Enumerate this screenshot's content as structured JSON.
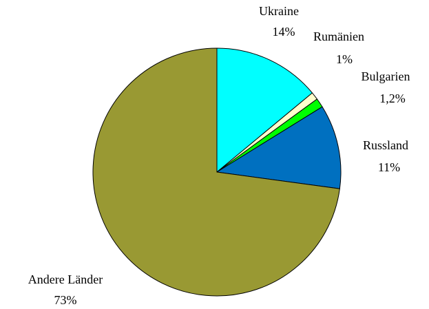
{
  "chart_data": {
    "type": "pie",
    "categories": [
      "Ukraine",
      "Rumänien",
      "Bulgarien",
      "Russland",
      "Andere Länder"
    ],
    "values": [
      14,
      1,
      1.2,
      11,
      73
    ],
    "value_labels": [
      "14%",
      "1%",
      "1,2%",
      "11%",
      "73%"
    ],
    "colors": [
      "#00ffff",
      "#ffffcc",
      "#00ff00",
      "#0070c0",
      "#999933"
    ]
  }
}
